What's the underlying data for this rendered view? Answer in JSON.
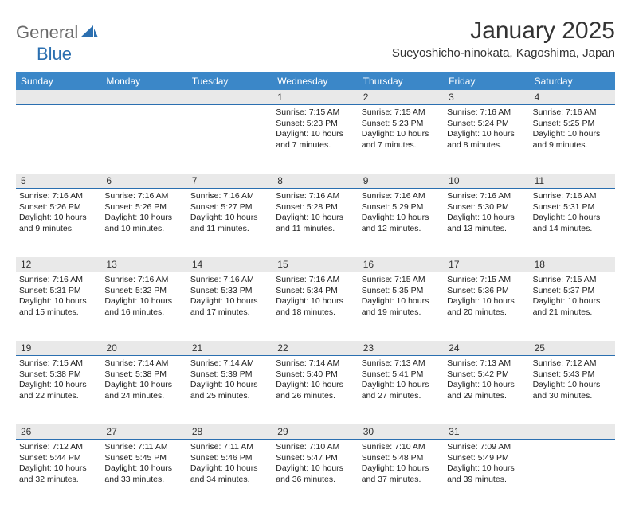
{
  "brand": {
    "part1": "General",
    "part2": "Blue"
  },
  "title": "January 2025",
  "location": "Sueyoshicho-ninokata, Kagoshima, Japan",
  "colors": {
    "header_bg": "#3b87c8",
    "band_bg": "#e9e9e9",
    "rule": "#2b6fb0",
    "text": "#222222",
    "brand_gray": "#6a6a6a",
    "brand_blue": "#2b6fb0"
  },
  "weekdays": [
    "Sunday",
    "Monday",
    "Tuesday",
    "Wednesday",
    "Thursday",
    "Friday",
    "Saturday"
  ],
  "weeks": [
    [
      null,
      null,
      null,
      {
        "n": "1",
        "sunrise": "7:15 AM",
        "sunset": "5:23 PM",
        "daylight": "10 hours and 7 minutes."
      },
      {
        "n": "2",
        "sunrise": "7:15 AM",
        "sunset": "5:23 PM",
        "daylight": "10 hours and 7 minutes."
      },
      {
        "n": "3",
        "sunrise": "7:16 AM",
        "sunset": "5:24 PM",
        "daylight": "10 hours and 8 minutes."
      },
      {
        "n": "4",
        "sunrise": "7:16 AM",
        "sunset": "5:25 PM",
        "daylight": "10 hours and 9 minutes."
      }
    ],
    [
      {
        "n": "5",
        "sunrise": "7:16 AM",
        "sunset": "5:26 PM",
        "daylight": "10 hours and 9 minutes."
      },
      {
        "n": "6",
        "sunrise": "7:16 AM",
        "sunset": "5:26 PM",
        "daylight": "10 hours and 10 minutes."
      },
      {
        "n": "7",
        "sunrise": "7:16 AM",
        "sunset": "5:27 PM",
        "daylight": "10 hours and 11 minutes."
      },
      {
        "n": "8",
        "sunrise": "7:16 AM",
        "sunset": "5:28 PM",
        "daylight": "10 hours and 11 minutes."
      },
      {
        "n": "9",
        "sunrise": "7:16 AM",
        "sunset": "5:29 PM",
        "daylight": "10 hours and 12 minutes."
      },
      {
        "n": "10",
        "sunrise": "7:16 AM",
        "sunset": "5:30 PM",
        "daylight": "10 hours and 13 minutes."
      },
      {
        "n": "11",
        "sunrise": "7:16 AM",
        "sunset": "5:31 PM",
        "daylight": "10 hours and 14 minutes."
      }
    ],
    [
      {
        "n": "12",
        "sunrise": "7:16 AM",
        "sunset": "5:31 PM",
        "daylight": "10 hours and 15 minutes."
      },
      {
        "n": "13",
        "sunrise": "7:16 AM",
        "sunset": "5:32 PM",
        "daylight": "10 hours and 16 minutes."
      },
      {
        "n": "14",
        "sunrise": "7:16 AM",
        "sunset": "5:33 PM",
        "daylight": "10 hours and 17 minutes."
      },
      {
        "n": "15",
        "sunrise": "7:16 AM",
        "sunset": "5:34 PM",
        "daylight": "10 hours and 18 minutes."
      },
      {
        "n": "16",
        "sunrise": "7:15 AM",
        "sunset": "5:35 PM",
        "daylight": "10 hours and 19 minutes."
      },
      {
        "n": "17",
        "sunrise": "7:15 AM",
        "sunset": "5:36 PM",
        "daylight": "10 hours and 20 minutes."
      },
      {
        "n": "18",
        "sunrise": "7:15 AM",
        "sunset": "5:37 PM",
        "daylight": "10 hours and 21 minutes."
      }
    ],
    [
      {
        "n": "19",
        "sunrise": "7:15 AM",
        "sunset": "5:38 PM",
        "daylight": "10 hours and 22 minutes."
      },
      {
        "n": "20",
        "sunrise": "7:14 AM",
        "sunset": "5:38 PM",
        "daylight": "10 hours and 24 minutes."
      },
      {
        "n": "21",
        "sunrise": "7:14 AM",
        "sunset": "5:39 PM",
        "daylight": "10 hours and 25 minutes."
      },
      {
        "n": "22",
        "sunrise": "7:14 AM",
        "sunset": "5:40 PM",
        "daylight": "10 hours and 26 minutes."
      },
      {
        "n": "23",
        "sunrise": "7:13 AM",
        "sunset": "5:41 PM",
        "daylight": "10 hours and 27 minutes."
      },
      {
        "n": "24",
        "sunrise": "7:13 AM",
        "sunset": "5:42 PM",
        "daylight": "10 hours and 29 minutes."
      },
      {
        "n": "25",
        "sunrise": "7:12 AM",
        "sunset": "5:43 PM",
        "daylight": "10 hours and 30 minutes."
      }
    ],
    [
      {
        "n": "26",
        "sunrise": "7:12 AM",
        "sunset": "5:44 PM",
        "daylight": "10 hours and 32 minutes."
      },
      {
        "n": "27",
        "sunrise": "7:11 AM",
        "sunset": "5:45 PM",
        "daylight": "10 hours and 33 minutes."
      },
      {
        "n": "28",
        "sunrise": "7:11 AM",
        "sunset": "5:46 PM",
        "daylight": "10 hours and 34 minutes."
      },
      {
        "n": "29",
        "sunrise": "7:10 AM",
        "sunset": "5:47 PM",
        "daylight": "10 hours and 36 minutes."
      },
      {
        "n": "30",
        "sunrise": "7:10 AM",
        "sunset": "5:48 PM",
        "daylight": "10 hours and 37 minutes."
      },
      {
        "n": "31",
        "sunrise": "7:09 AM",
        "sunset": "5:49 PM",
        "daylight": "10 hours and 39 minutes."
      },
      null
    ]
  ],
  "labels": {
    "sunrise": "Sunrise:",
    "sunset": "Sunset:",
    "daylight": "Daylight:"
  }
}
